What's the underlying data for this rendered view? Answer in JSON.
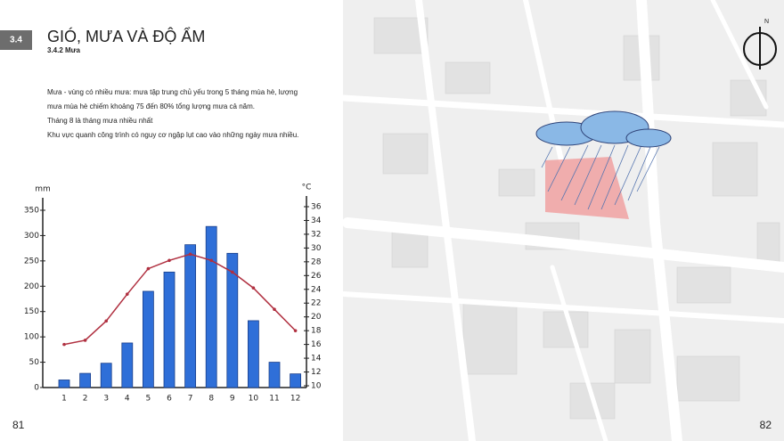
{
  "page": {
    "section_number": "3.4",
    "title": "GIÓ, MƯA VÀ ĐỘ ẨM",
    "subtitle": "3.4.2 Mưa",
    "paragraph": [
      "Mưa - vùng có nhiều mưa: mưa tập trung chủ yếu trong 5 tháng mùa hè, lượng",
      "mưa mùa hè chiếm khoảng 75 đến 80% tổng lượng mưa cả năm.",
      "Tháng 8 là tháng mưa nhiều nhất",
      "Khu vực quanh công trình có nguy cơ ngập lụt cao vào những ngày mưa nhiều."
    ],
    "page_left": "81",
    "page_right": "82",
    "compass_label": "N"
  },
  "chart_data": {
    "type": "bar-line",
    "y_label": "mm",
    "y2_label": "°C",
    "categories": [
      "1",
      "2",
      "3",
      "4",
      "5",
      "6",
      "7",
      "8",
      "9",
      "10",
      "11",
      "12"
    ],
    "series": [
      {
        "type": "bar",
        "color": "#2f6fd8",
        "values": [
          15,
          28,
          48,
          88,
          190,
          228,
          282,
          318,
          265,
          132,
          50,
          27
        ]
      },
      {
        "type": "line",
        "axis": "y2",
        "color": "#b03040",
        "values": [
          16,
          16.6,
          19.4,
          23.3,
          27,
          28.2,
          29.1,
          28.2,
          26.5,
          24.2,
          21.1,
          18
        ]
      }
    ],
    "ylim": [
      0,
      350
    ],
    "yticks": [
      0,
      50,
      100,
      150,
      200,
      250,
      300,
      350
    ],
    "y2lim": [
      10,
      36
    ],
    "y2ticks": [
      10,
      12,
      14,
      16,
      18,
      20,
      22,
      24,
      26,
      28,
      30,
      32,
      34,
      36
    ]
  }
}
